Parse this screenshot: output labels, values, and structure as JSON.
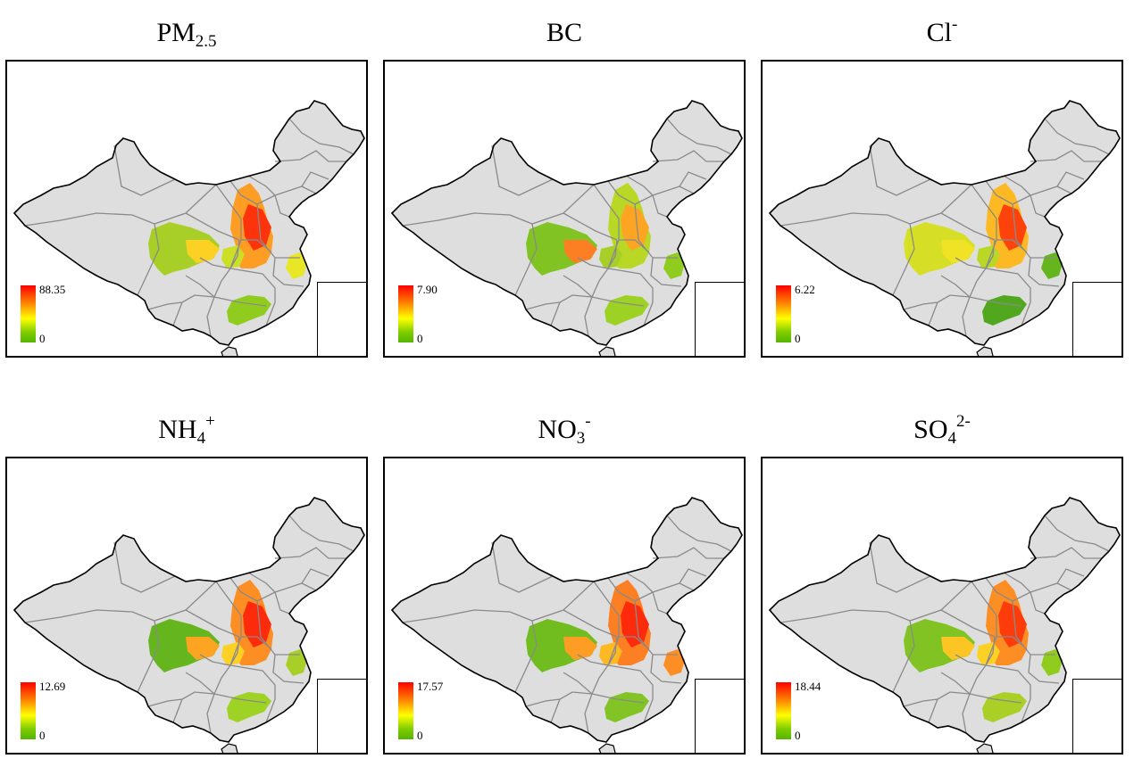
{
  "panels": [
    {
      "id": "pm25",
      "title": {
        "main": "PM",
        "sub": "2.5",
        "sup": ""
      },
      "legend": {
        "max": "88.35",
        "min": "0"
      }
    },
    {
      "id": "bc",
      "title": {
        "main": "BC",
        "sub": "",
        "sup": ""
      },
      "legend": {
        "max": "7.90",
        "min": "0"
      }
    },
    {
      "id": "cl",
      "title": {
        "main": "Cl",
        "sub": "",
        "sup": "-"
      },
      "legend": {
        "max": "6.22",
        "min": "0"
      }
    },
    {
      "id": "nh4",
      "title": {
        "main": "NH",
        "sub": "4",
        "sup": "+"
      },
      "legend": {
        "max": "12.69",
        "min": "0"
      }
    },
    {
      "id": "no3",
      "title": {
        "main": "NO",
        "sub": "3",
        "sup": "-"
      },
      "legend": {
        "max": "17.57",
        "min": "0"
      }
    },
    {
      "id": "so4",
      "title": {
        "main": "SO",
        "sub": "4",
        "sup": "2-"
      },
      "legend": {
        "max": "18.44",
        "min": "0"
      }
    }
  ],
  "colors": {
    "land": "#dedede",
    "province_border": "#8a8a8a",
    "country_border": "#000000",
    "scale_high": "#ff0000",
    "scale_mid": "#ffff00",
    "scale_low": "#55b500"
  }
}
